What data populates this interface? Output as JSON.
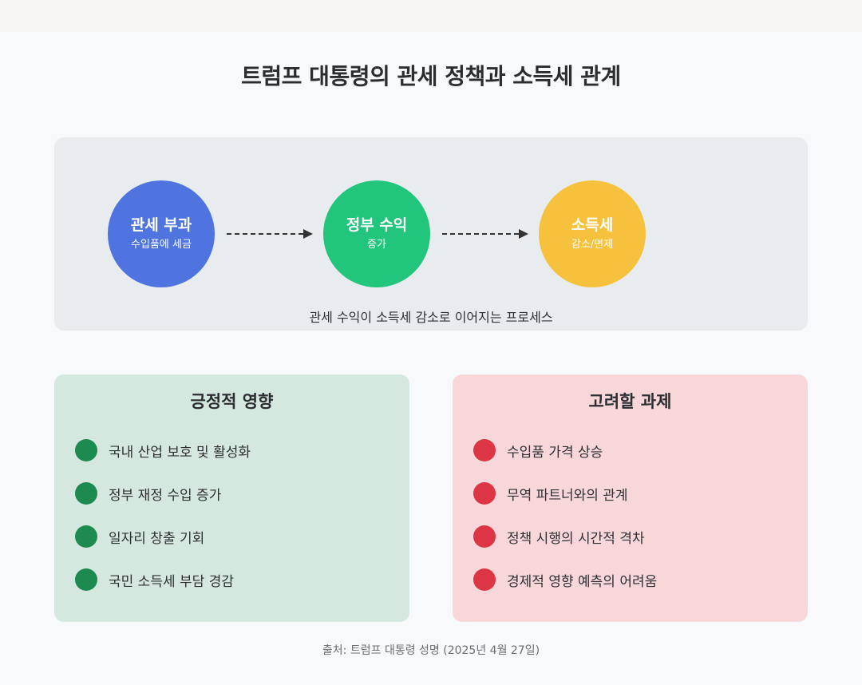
{
  "title": "트럼프 대통령의 관세 정책과 소득세 관계",
  "flow": {
    "steps": [
      {
        "label": "관세 부과",
        "sub": "수입품에 세금",
        "color": "#4f74e0"
      },
      {
        "label": "정부 수익",
        "sub": "증가",
        "color": "#22c57c"
      },
      {
        "label": "소득세",
        "sub": "감소/면제",
        "color": "#f6c23e"
      }
    ],
    "caption": "관세 수익이 소득세 감소로 이어지는 프로세스"
  },
  "positive": {
    "title": "긍정적 영향",
    "color": "#1d8a50",
    "items": [
      "국내 산업 보호 및 활성화",
      "정부 재정 수입 증가",
      "일자리 창출 기회",
      "국민 소득세 부담 경감"
    ]
  },
  "challenges": {
    "title": "고려할 과제",
    "color": "#dc3545",
    "items": [
      "수입품 가격 상승",
      "무역 파트너와의 관계",
      "정책 시행의 시간적 격차",
      "경제적 영향 예측의 어려움"
    ]
  },
  "source": "출처: 트럼프 대통령 성명 (2025년 4월 27일)"
}
